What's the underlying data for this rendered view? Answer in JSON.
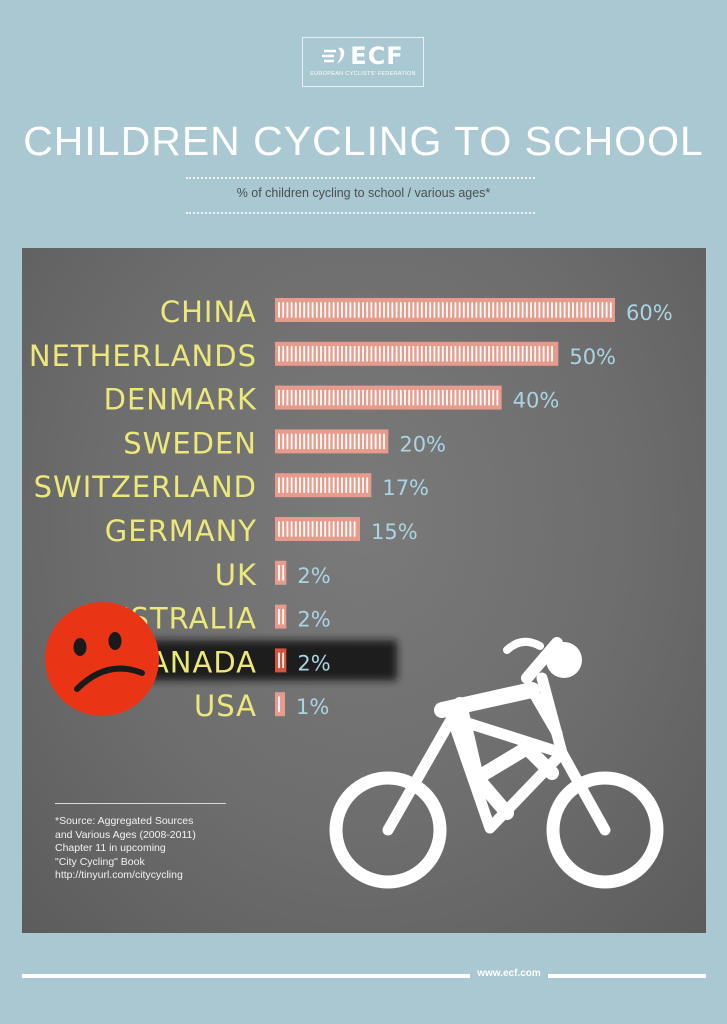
{
  "logo": {
    "mark": "ECF",
    "subtitle": "EUROPEAN CYCLISTS' FEDERATION"
  },
  "title": "CHILDREN CYCLING TO SCHOOL",
  "subtitle": "% of children cycling to school / various ages*",
  "chart_data": {
    "type": "bar",
    "orientation": "horizontal",
    "categories": [
      "CHINA",
      "NETHERLANDS",
      "DENMARK",
      "SWEDEN",
      "SWITZERLAND",
      "GERMANY",
      "UK",
      "AUSTRALIA",
      "CANADA",
      "USA"
    ],
    "values": [
      60,
      50,
      40,
      20,
      17,
      15,
      2,
      2,
      2,
      1
    ],
    "value_labels": [
      "60%",
      "50%",
      "40%",
      "20%",
      "17%",
      "15%",
      "2%",
      "2%",
      "2%",
      "1%"
    ],
    "highlight": "CANADA",
    "xlim": [
      0,
      60
    ],
    "grid": false,
    "colors": {
      "bar": "#e79b8d",
      "bar_highlight": "#d4553d",
      "label": "#ece87a",
      "value": "#a9d5e3",
      "sad_face": "#ea3416"
    }
  },
  "footnote": {
    "lines": [
      "*Source: Aggregated Sources",
      "and Various Ages (2008-2011)",
      "Chapter 11 in upcoming",
      "\"City Cycling\" Book",
      "http://tinyurl.com/citycycling"
    ]
  },
  "footer": {
    "url": "www.ecf.com"
  },
  "icons": [
    "ecf-logo-icon",
    "sad-face-icon",
    "cyclist-icon"
  ]
}
